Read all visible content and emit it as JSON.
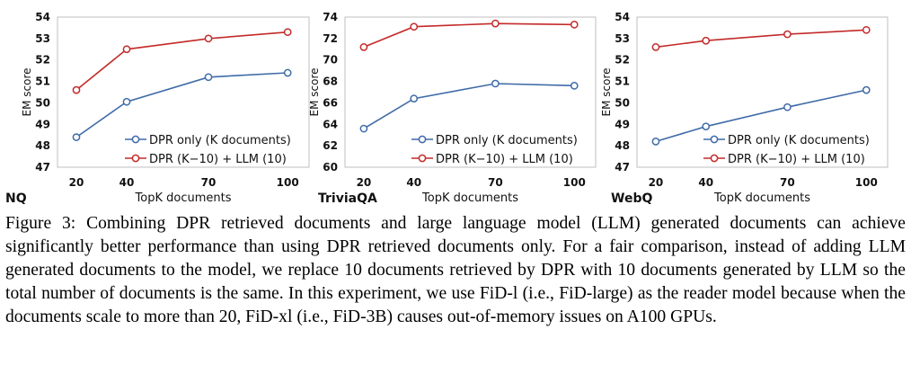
{
  "chart_data": [
    {
      "type": "line",
      "dataset": "NQ",
      "xlabel": "TopK documents",
      "ylabel": "EM score",
      "categories": [
        "20",
        "40",
        "70",
        "100"
      ],
      "ylim": [
        47,
        54
      ],
      "yticks": [
        47,
        48,
        49,
        50,
        51,
        52,
        53,
        54
      ],
      "legend_position": "bottom-right",
      "series": [
        {
          "name": "DPR only (K documents)",
          "color": "#3f6ba8",
          "values": [
            48.4,
            50.05,
            51.2,
            51.4
          ]
        },
        {
          "name": "DPR (K−10) + LLM (10)",
          "color": "#c42a2a",
          "values": [
            50.6,
            52.5,
            53.0,
            53.3
          ]
        }
      ]
    },
    {
      "type": "line",
      "dataset": "TriviaQA",
      "xlabel": "TopK documents",
      "ylabel": "EM score",
      "categories": [
        "20",
        "40",
        "70",
        "100"
      ],
      "ylim": [
        60,
        74
      ],
      "yticks": [
        60,
        62,
        64,
        66,
        68,
        70,
        72,
        74
      ],
      "legend_position": "bottom-right",
      "series": [
        {
          "name": "DPR only (K documents)",
          "color": "#3f6ba8",
          "values": [
            63.6,
            66.4,
            67.8,
            67.6
          ]
        },
        {
          "name": "DPR (K−10) + LLM (10)",
          "color": "#c42a2a",
          "values": [
            71.2,
            73.1,
            73.4,
            73.3
          ]
        }
      ]
    },
    {
      "type": "line",
      "dataset": "WebQ",
      "xlabel": "TopK documents",
      "ylabel": "EM score",
      "categories": [
        "20",
        "40",
        "70",
        "100"
      ],
      "ylim": [
        47,
        54
      ],
      "yticks": [
        47,
        48,
        49,
        50,
        51,
        52,
        53,
        54
      ],
      "legend_position": "bottom-right",
      "series": [
        {
          "name": "DPR only (K documents)",
          "color": "#3f6ba8",
          "values": [
            48.2,
            48.9,
            49.8,
            50.6
          ]
        },
        {
          "name": "DPR (K−10) + LLM (10)",
          "color": "#c42a2a",
          "values": [
            52.6,
            52.9,
            53.2,
            53.4
          ]
        }
      ]
    }
  ],
  "caption": {
    "label": "Figure 3:",
    "text": "Combining DPR retrieved documents and large language model (LLM) generated documents can achieve significantly better performance than using DPR retrieved documents only. For a fair comparison, instead of adding LLM generated documents to the model, we replace 10 documents retrieved by DPR with 10 documents generated by LLM so the total number of documents is the same. In this experiment, we use FiD-l (i.e., FiD-large) as the reader model because when the documents scale to more than 20, FiD-xl (i.e., FiD-3B) causes out-of-memory issues on A100 GPUs."
  }
}
